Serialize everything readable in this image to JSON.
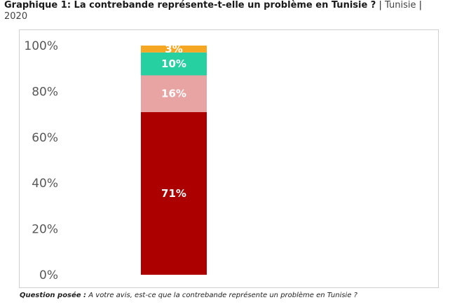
{
  "title": {
    "main": "Graphique 1: La contrebande représente-t-elle un problème en Tunisie ?",
    "separator_left": "|",
    "country": "Tunisie",
    "separator_right": "|",
    "year": "2020"
  },
  "question": {
    "label": "Question posée :",
    "text": "A votre avis, est-ce que la contrebande représente un problème en Tunisie ?"
  },
  "chart_data": {
    "type": "bar",
    "stacked": true,
    "categories": [
      ""
    ],
    "ylim": [
      0,
      100
    ],
    "yticks": [
      0,
      20,
      40,
      60,
      80,
      100
    ],
    "ytick_labels": [
      "0%",
      "20%",
      "40%",
      "60%",
      "80%",
      "100%"
    ],
    "grid": false,
    "series": [
      {
        "values": [
          71
        ],
        "label": "71%",
        "color": "#ac0000"
      },
      {
        "values": [
          16
        ],
        "label": "16%",
        "color": "#e8a3a3"
      },
      {
        "values": [
          10
        ],
        "label": "10%",
        "color": "#26d0a0"
      },
      {
        "values": [
          3
        ],
        "label": "3%",
        "color": "#f5a623"
      }
    ]
  }
}
